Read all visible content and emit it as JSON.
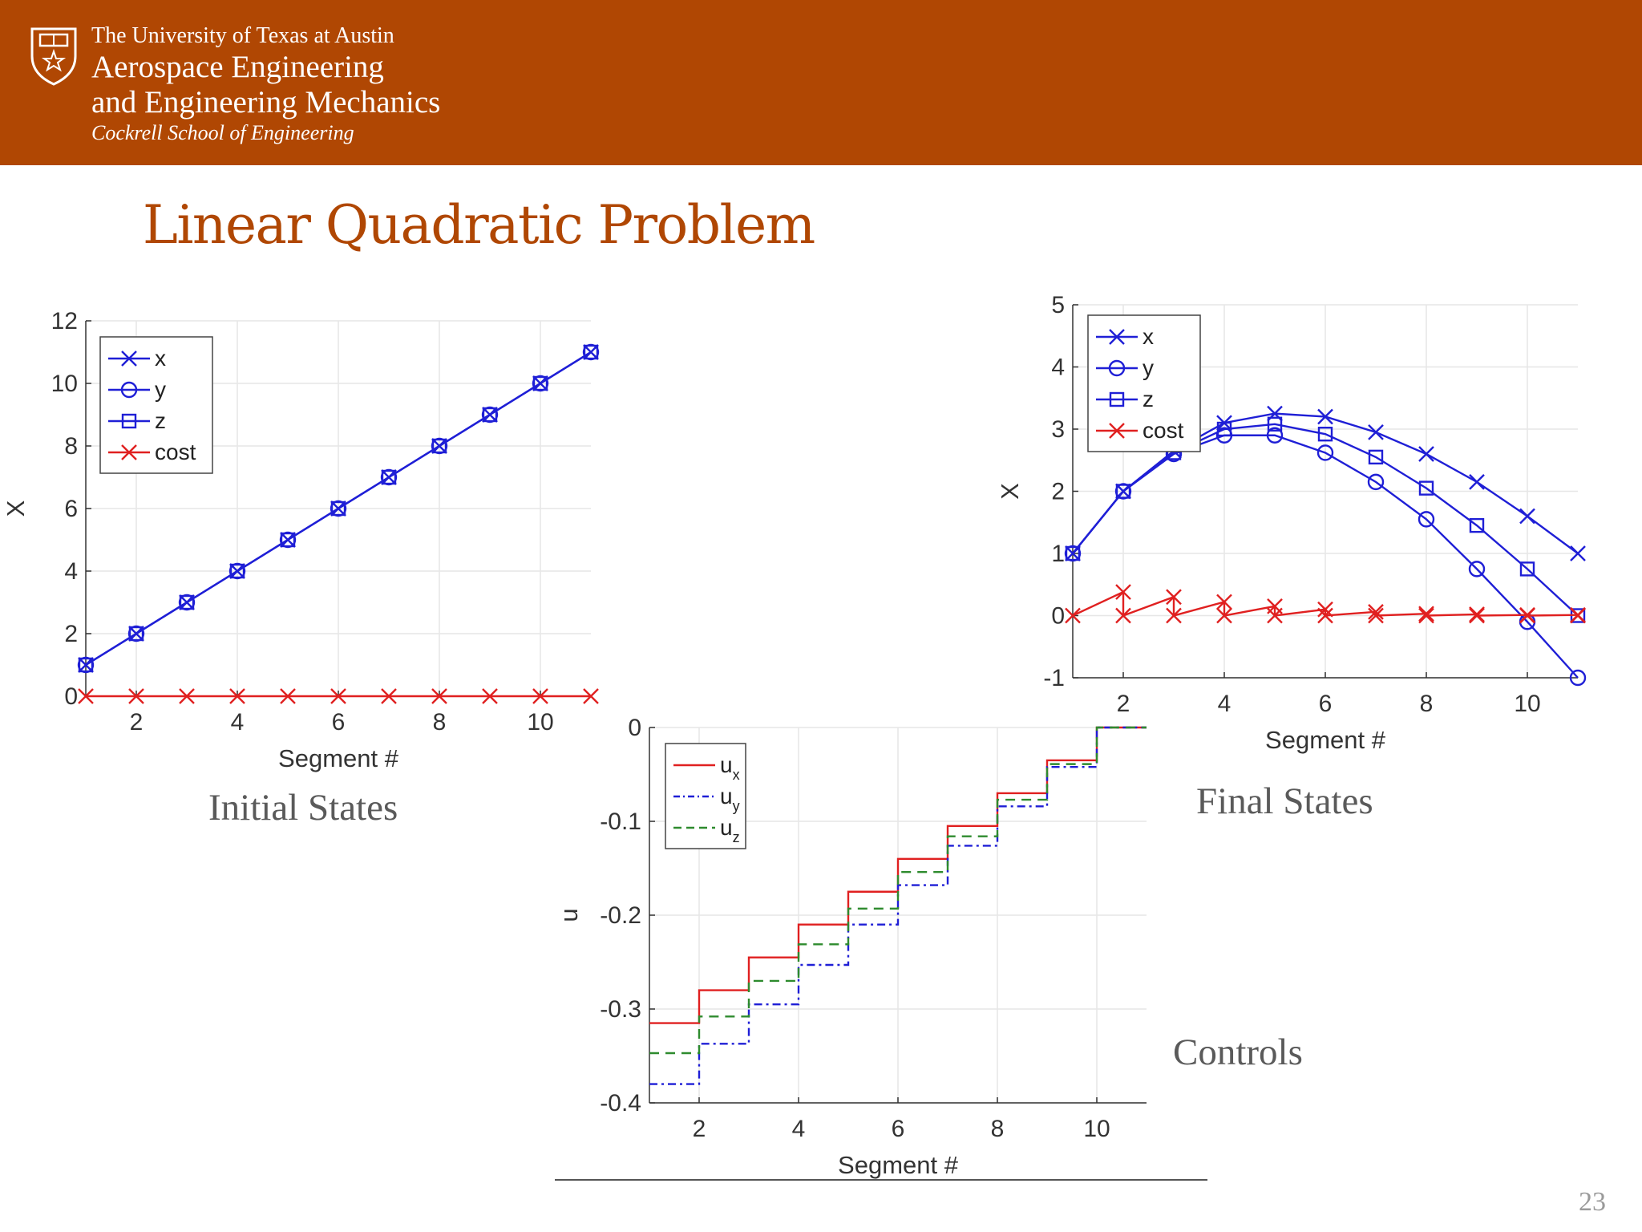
{
  "header": {
    "university": "The University of Texas at Austin",
    "department_line1": "Aerospace Engineering",
    "department_line2": "and Engineering Mechanics",
    "school": "Cockrell School of Engineering"
  },
  "slide": {
    "title": "Linear Quadratic Problem",
    "page_number": "23"
  },
  "captions": {
    "initial": "Initial States",
    "final": "Final States",
    "controls": "Controls"
  },
  "colors": {
    "banner": "#b04703",
    "blue": "#1f1fd6",
    "red": "#e02020",
    "green": "#2e8b2e",
    "title": "#b04703"
  },
  "chart_data": [
    {
      "id": "initial",
      "type": "line",
      "xlabel": "Segment #",
      "ylabel": "X",
      "xlim": [
        1,
        11
      ],
      "ylim": [
        0,
        12
      ],
      "xticks": [
        2,
        4,
        6,
        8,
        10
      ],
      "yticks": [
        0,
        2,
        4,
        6,
        8,
        10,
        12
      ],
      "grid": true,
      "legend": "top-left",
      "x": [
        1,
        2,
        3,
        4,
        5,
        6,
        7,
        8,
        9,
        10,
        11
      ],
      "series": [
        {
          "name": "x",
          "marker": "x",
          "color": "#1f1fd6",
          "values": [
            1,
            2,
            3,
            4,
            5,
            6,
            7,
            8,
            9,
            10,
            11
          ]
        },
        {
          "name": "y",
          "marker": "o",
          "color": "#1f1fd6",
          "values": [
            1,
            2,
            3,
            4,
            5,
            6,
            7,
            8,
            9,
            10,
            11
          ]
        },
        {
          "name": "z",
          "marker": "s",
          "color": "#1f1fd6",
          "values": [
            1,
            2,
            3,
            4,
            5,
            6,
            7,
            8,
            9,
            10,
            11
          ]
        },
        {
          "name": "cost",
          "marker": "x",
          "color": "#e02020",
          "values": [
            0,
            0,
            0,
            0,
            0,
            0,
            0,
            0,
            0,
            0,
            0
          ]
        }
      ]
    },
    {
      "id": "final",
      "type": "line",
      "xlabel": "Segment #",
      "ylabel": "X",
      "xlim": [
        1,
        11
      ],
      "ylim": [
        -1,
        5
      ],
      "xticks": [
        2,
        4,
        6,
        8,
        10
      ],
      "yticks": [
        -1,
        0,
        1,
        2,
        3,
        4,
        5
      ],
      "grid": true,
      "legend": "top-left",
      "x": [
        1,
        2,
        3,
        4,
        5,
        6,
        7,
        8,
        9,
        10,
        11
      ],
      "series": [
        {
          "name": "x",
          "marker": "x",
          "color": "#1f1fd6",
          "values": [
            1,
            2,
            2.65,
            3.1,
            3.25,
            3.2,
            2.95,
            2.6,
            2.15,
            1.6,
            1.0
          ]
        },
        {
          "name": "y",
          "marker": "o",
          "color": "#1f1fd6",
          "values": [
            1,
            2,
            2.6,
            2.9,
            2.9,
            2.62,
            2.15,
            1.55,
            0.75,
            -0.1,
            -1.0
          ]
        },
        {
          "name": "z",
          "marker": "s",
          "color": "#1f1fd6",
          "values": [
            1,
            2,
            2.62,
            3.0,
            3.08,
            2.92,
            2.55,
            2.05,
            1.45,
            0.75,
            0.0
          ]
        },
        {
          "name": "cost",
          "marker": "x",
          "color": "#e02020",
          "values": [
            0,
            0.38,
            0,
            0.3,
            0,
            0.22,
            0,
            0.15,
            0,
            0.1,
            0,
            0.06,
            0,
            0.03,
            0,
            0.02,
            0,
            0.01,
            0,
            0.01,
            0
          ],
          "x": [
            1,
            2,
            2,
            3,
            3,
            4,
            4,
            5,
            5,
            6,
            6,
            7,
            7,
            8,
            8,
            9,
            9,
            10,
            10,
            11,
            11
          ]
        }
      ]
    },
    {
      "id": "controls",
      "type": "line",
      "xlabel": "Segment #",
      "ylabel": "u",
      "xlim": [
        1,
        11
      ],
      "ylim": [
        -0.4,
        0
      ],
      "xticks": [
        2,
        4,
        6,
        8,
        10
      ],
      "yticks": [
        0,
        -0.1,
        -0.2,
        -0.3,
        -0.4
      ],
      "grid": true,
      "legend": "top-left",
      "step": true,
      "x": [
        1,
        2,
        3,
        4,
        5,
        6,
        7,
        8,
        9,
        10,
        11
      ],
      "series": [
        {
          "name": "u_x",
          "sub": "x",
          "style": "solid",
          "color": "#e02020",
          "values": [
            -0.315,
            -0.28,
            -0.245,
            -0.21,
            -0.175,
            -0.14,
            -0.105,
            -0.07,
            -0.035,
            0,
            0
          ]
        },
        {
          "name": "u_y",
          "sub": "y",
          "style": "dashdot",
          "color": "#1f1fd6",
          "values": [
            -0.38,
            -0.337,
            -0.295,
            -0.253,
            -0.21,
            -0.168,
            -0.126,
            -0.084,
            -0.042,
            0,
            0
          ]
        },
        {
          "name": "u_z",
          "sub": "z",
          "style": "dashed",
          "color": "#2e8b2e",
          "values": [
            -0.347,
            -0.308,
            -0.27,
            -0.231,
            -0.193,
            -0.154,
            -0.116,
            -0.077,
            -0.039,
            0,
            0
          ]
        }
      ]
    }
  ]
}
